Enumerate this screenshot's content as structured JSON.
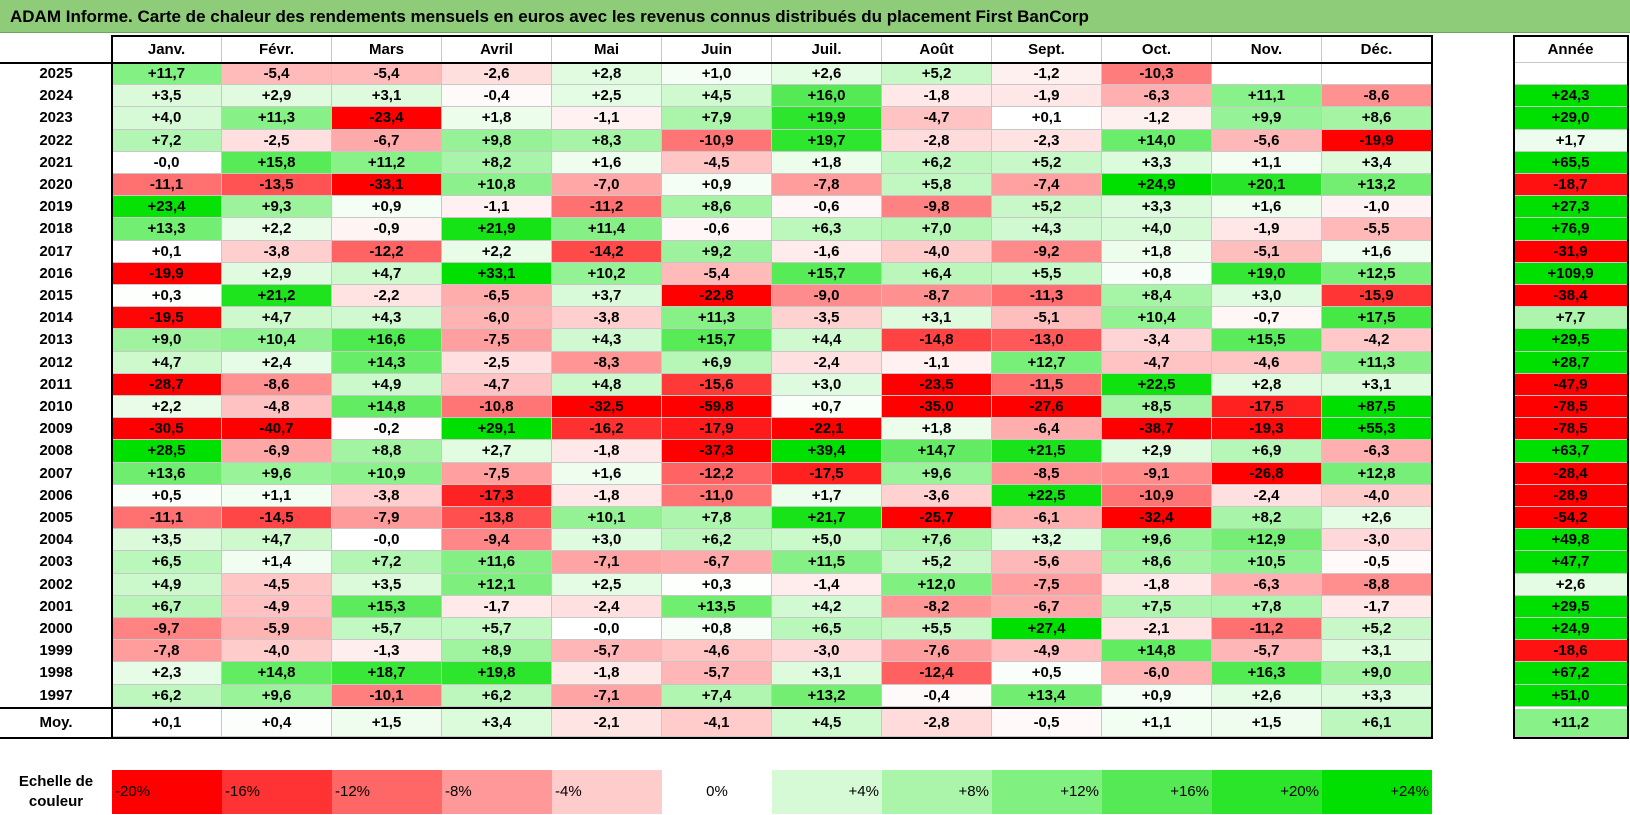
{
  "title": "ADAM Informe. Carte de chaleur des rendements mensuels en euros avec les revenus connus distribués du placement First BanCorp",
  "chart_data": {
    "type": "heatmap",
    "title": "ADAM Informe. Carte de chaleur des rendements mensuels en euros avec les revenus connus distribués du placement First BanCorp",
    "columns": [
      "Janv.",
      "Févr.",
      "Mars",
      "Avril",
      "Mai",
      "Juin",
      "Juil.",
      "Août",
      "Sept.",
      "Oct.",
      "Nov.",
      "Déc."
    ],
    "annual_label": "Année",
    "rows": [
      {
        "year": "2025",
        "months": [
          "+11,7",
          "-5,4",
          "-5,4",
          "-2,6",
          "+2,8",
          "+1,0",
          "+2,6",
          "+5,2",
          "-1,2",
          "-10,3",
          "",
          ""
        ],
        "annual": ""
      },
      {
        "year": "2024",
        "months": [
          "+3,5",
          "+2,9",
          "+3,1",
          "-0,4",
          "+2,5",
          "+4,5",
          "+16,0",
          "-1,8",
          "-1,9",
          "-6,3",
          "+11,1",
          "-8,6"
        ],
        "annual": "+24,3"
      },
      {
        "year": "2023",
        "months": [
          "+4,0",
          "+11,3",
          "-23,4",
          "+1,8",
          "-1,1",
          "+7,9",
          "+19,9",
          "-4,7",
          "+0,1",
          "-1,2",
          "+9,9",
          "+8,6"
        ],
        "annual": "+29,0"
      },
      {
        "year": "2022",
        "months": [
          "+7,2",
          "-2,5",
          "-6,7",
          "+9,8",
          "+8,3",
          "-10,9",
          "+19,7",
          "-2,8",
          "-2,3",
          "+14,0",
          "-5,6",
          "-19,9"
        ],
        "annual": "+1,7"
      },
      {
        "year": "2021",
        "months": [
          "-0,0",
          "+15,8",
          "+11,2",
          "+8,2",
          "+1,6",
          "-4,5",
          "+1,8",
          "+6,2",
          "+5,2",
          "+3,3",
          "+1,1",
          "+3,4"
        ],
        "annual": "+65,5"
      },
      {
        "year": "2020",
        "months": [
          "-11,1",
          "-13,5",
          "-33,1",
          "+10,8",
          "-7,0",
          "+0,9",
          "-7,8",
          "+5,8",
          "-7,4",
          "+24,9",
          "+20,1",
          "+13,2"
        ],
        "annual": "-18,7"
      },
      {
        "year": "2019",
        "months": [
          "+23,4",
          "+9,3",
          "+0,9",
          "-1,1",
          "-11,2",
          "+8,6",
          "-0,6",
          "-9,8",
          "+5,2",
          "+3,3",
          "+1,6",
          "-1,0"
        ],
        "annual": "+27,3"
      },
      {
        "year": "2018",
        "months": [
          "+13,3",
          "+2,2",
          "-0,9",
          "+21,9",
          "+11,4",
          "-0,6",
          "+6,3",
          "+7,0",
          "+4,3",
          "+4,0",
          "-1,9",
          "-5,5"
        ],
        "annual": "+76,9"
      },
      {
        "year": "2017",
        "months": [
          "+0,1",
          "-3,8",
          "-12,2",
          "+2,2",
          "-14,2",
          "+9,2",
          "-1,6",
          "-4,0",
          "-9,2",
          "+1,8",
          "-5,1",
          "+1,6"
        ],
        "annual": "-31,9"
      },
      {
        "year": "2016",
        "months": [
          "-19,9",
          "+2,9",
          "+4,7",
          "+33,1",
          "+10,2",
          "-5,4",
          "+15,7",
          "+6,4",
          "+5,5",
          "+0,8",
          "+19,0",
          "+12,5"
        ],
        "annual": "+109,9"
      },
      {
        "year": "2015",
        "months": [
          "+0,3",
          "+21,2",
          "-2,2",
          "-6,5",
          "+3,7",
          "-22,8",
          "-9,0",
          "-8,7",
          "-11,3",
          "+8,4",
          "+3,0",
          "-15,9"
        ],
        "annual": "-38,4"
      },
      {
        "year": "2014",
        "months": [
          "-19,5",
          "+4,7",
          "+4,3",
          "-6,0",
          "-3,8",
          "+11,3",
          "-3,5",
          "+3,1",
          "-5,1",
          "+10,4",
          "-0,7",
          "+17,5"
        ],
        "annual": "+7,7"
      },
      {
        "year": "2013",
        "months": [
          "+9,0",
          "+10,4",
          "+16,6",
          "-7,5",
          "+4,3",
          "+15,7",
          "+4,4",
          "-14,8",
          "-13,0",
          "-3,4",
          "+15,5",
          "-4,2"
        ],
        "annual": "+29,5"
      },
      {
        "year": "2012",
        "months": [
          "+4,7",
          "+2,4",
          "+14,3",
          "-2,5",
          "-8,3",
          "+6,9",
          "-2,4",
          "-1,1",
          "+12,7",
          "-4,7",
          "-4,6",
          "+11,3"
        ],
        "annual": "+28,7"
      },
      {
        "year": "2011",
        "months": [
          "-28,7",
          "-8,6",
          "+4,9",
          "-4,7",
          "+4,8",
          "-15,6",
          "+3,0",
          "-23,5",
          "-11,5",
          "+22,5",
          "+2,8",
          "+3,1"
        ],
        "annual": "-47,9"
      },
      {
        "year": "2010",
        "months": [
          "+2,2",
          "-4,8",
          "+14,8",
          "-10,8",
          "-32,5",
          "-59,8",
          "+0,7",
          "-35,0",
          "-27,6",
          "+8,5",
          "-17,5",
          "+87,5"
        ],
        "annual": "-78,5"
      },
      {
        "year": "2009",
        "months": [
          "-30,5",
          "-40,7",
          "-0,2",
          "+29,1",
          "-16,2",
          "-17,9",
          "-22,1",
          "+1,8",
          "-6,4",
          "-38,7",
          "-19,3",
          "+55,3"
        ],
        "annual": "-78,5"
      },
      {
        "year": "2008",
        "months": [
          "+28,5",
          "-6,9",
          "+8,8",
          "+2,7",
          "-1,8",
          "-37,3",
          "+39,4",
          "+14,7",
          "+21,5",
          "+2,9",
          "+6,9",
          "-6,3"
        ],
        "annual": "+63,7"
      },
      {
        "year": "2007",
        "months": [
          "+13,6",
          "+9,6",
          "+10,9",
          "-7,5",
          "+1,6",
          "-12,2",
          "-17,5",
          "+9,6",
          "-8,5",
          "-9,1",
          "-26,8",
          "+12,8"
        ],
        "annual": "-28,4"
      },
      {
        "year": "2006",
        "months": [
          "+0,5",
          "+1,1",
          "-3,8",
          "-17,3",
          "-1,8",
          "-11,0",
          "+1,7",
          "-3,6",
          "+22,5",
          "-10,9",
          "-2,4",
          "-4,0"
        ],
        "annual": "-28,9"
      },
      {
        "year": "2005",
        "months": [
          "-11,1",
          "-14,5",
          "-7,9",
          "-13,8",
          "+10,1",
          "+7,8",
          "+21,7",
          "-25,7",
          "-6,1",
          "-32,4",
          "+8,2",
          "+2,6"
        ],
        "annual": "-54,2"
      },
      {
        "year": "2004",
        "months": [
          "+3,5",
          "+4,7",
          "-0,0",
          "-9,4",
          "+3,0",
          "+6,2",
          "+5,0",
          "+7,6",
          "+3,2",
          "+9,6",
          "+12,9",
          "-3,0"
        ],
        "annual": "+49,8"
      },
      {
        "year": "2003",
        "months": [
          "+6,5",
          "+1,4",
          "+7,2",
          "+11,6",
          "-7,1",
          "-6,7",
          "+11,5",
          "+5,2",
          "-5,6",
          "+8,6",
          "+10,5",
          "-0,5"
        ],
        "annual": "+47,7"
      },
      {
        "year": "2002",
        "months": [
          "+4,9",
          "-4,5",
          "+3,5",
          "+12,1",
          "+2,5",
          "+0,3",
          "-1,4",
          "+12,0",
          "-7,5",
          "-1,8",
          "-6,3",
          "-8,8"
        ],
        "annual": "+2,6"
      },
      {
        "year": "2001",
        "months": [
          "+6,7",
          "-4,9",
          "+15,3",
          "-1,7",
          "-2,4",
          "+13,5",
          "+4,2",
          "-8,2",
          "-6,7",
          "+7,5",
          "+7,8",
          "-1,7"
        ],
        "annual": "+29,5"
      },
      {
        "year": "2000",
        "months": [
          "-9,7",
          "-5,9",
          "+5,7",
          "+5,7",
          "-0,0",
          "+0,8",
          "+6,5",
          "+5,5",
          "+27,4",
          "-2,1",
          "-11,2",
          "+5,2"
        ],
        "annual": "+24,9"
      },
      {
        "year": "1999",
        "months": [
          "-7,8",
          "-4,0",
          "-1,3",
          "+8,9",
          "-5,7",
          "-4,6",
          "-3,0",
          "-7,6",
          "-4,9",
          "+14,8",
          "-5,7",
          "+3,1"
        ],
        "annual": "-18,6"
      },
      {
        "year": "1998",
        "months": [
          "+2,3",
          "+14,8",
          "+18,7",
          "+19,8",
          "-1,8",
          "-5,7",
          "+3,1",
          "-12,4",
          "+0,5",
          "-6,0",
          "+16,3",
          "+9,0"
        ],
        "annual": "+67,2"
      },
      {
        "year": "1997",
        "months": [
          "+6,2",
          "+9,6",
          "-10,1",
          "+6,2",
          "-7,1",
          "+7,4",
          "+13,2",
          "-0,4",
          "+13,4",
          "+0,9",
          "+2,6",
          "+3,3"
        ],
        "annual": "+51,0"
      }
    ],
    "average": {
      "label": "Moy.",
      "months": [
        "+0,1",
        "+0,4",
        "+1,5",
        "+3,4",
        "-2,1",
        "-4,1",
        "+4,5",
        "-2,8",
        "-0,5",
        "+1,1",
        "+1,5",
        "+6,1"
      ],
      "annual": "+11,2"
    },
    "scale": {
      "label_line1": "Echelle de",
      "label_line2": "couleur",
      "steps": [
        {
          "label": "-20%",
          "value": -20
        },
        {
          "label": "-16%",
          "value": -16
        },
        {
          "label": "-12%",
          "value": -12
        },
        {
          "label": "-8%",
          "value": -8
        },
        {
          "label": "-4%",
          "value": -4
        },
        {
          "label": "0%",
          "value": 0
        },
        {
          "label": "+4%",
          "value": 4
        },
        {
          "label": "+8%",
          "value": 8
        },
        {
          "label": "+12%",
          "value": 12
        },
        {
          "label": "+16%",
          "value": 16
        },
        {
          "label": "+20%",
          "value": 20
        },
        {
          "label": "+24%",
          "value": 24
        }
      ]
    },
    "colors": {
      "negative_max": "#ff0000",
      "neutral": "#ffffff",
      "positive_max": "#00e000"
    },
    "color_range": [
      -20,
      24
    ]
  }
}
